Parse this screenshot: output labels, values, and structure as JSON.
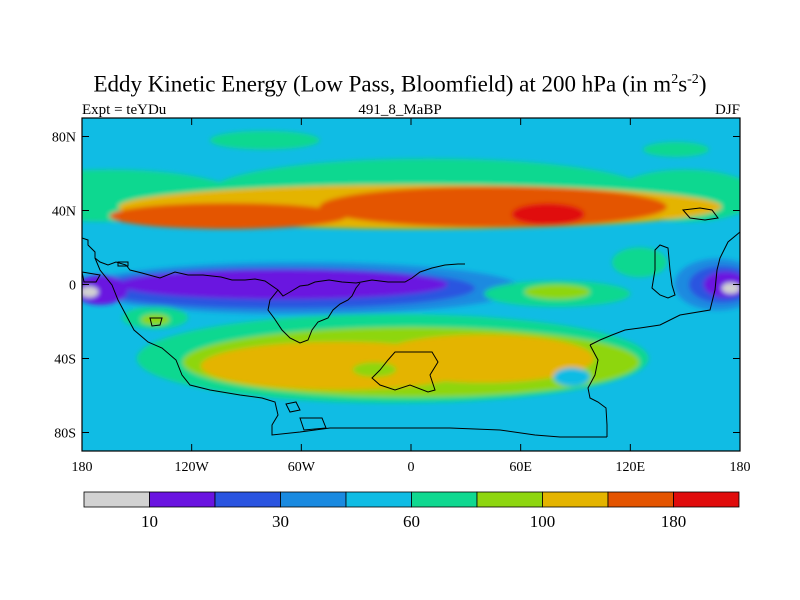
{
  "title": {
    "main": "Eddy Kinetic Energy (Low Pass, Bloomfield) at 200 hPa (in m",
    "sup1": "2",
    "mid": "s",
    "sup2": "-2",
    "end": ")"
  },
  "subtitle": {
    "left": "Expt = teYDu",
    "center": "491_8_MaBP",
    "right": "DJF"
  },
  "axes": {
    "y_ticks": [
      "80N",
      "40N",
      "0",
      "40S",
      "80S"
    ],
    "y_values": [
      80,
      40,
      0,
      -40,
      -80
    ],
    "x_ticks": [
      "180",
      "120W",
      "60W",
      "0",
      "60E",
      "120E",
      "180"
    ],
    "x_values": [
      -180,
      -120,
      -60,
      0,
      60,
      120,
      180
    ]
  },
  "colorbar": {
    "colors": [
      "#d2d2d2",
      "#6a14e0",
      "#2a54e0",
      "#1a8ae0",
      "#10bce4",
      "#10d890",
      "#8ed610",
      "#e4b400",
      "#e45400",
      "#e00c0c"
    ],
    "labels": [
      "10",
      "30",
      "60",
      "100",
      "180"
    ],
    "label_after_bin": [
      1,
      3,
      5,
      7,
      9
    ]
  },
  "legend_note": "shaded contours of eddy kinetic energy",
  "field": {
    "background": "#10bce4",
    "regions": [
      {
        "name": "band-n-green",
        "color": "#10d890",
        "lon": -165,
        "lat": 48,
        "rx": 70,
        "ry": 14
      },
      {
        "name": "band-n-green-2",
        "color": "#10d890",
        "lon": 10,
        "lat": 50,
        "rx": 120,
        "ry": 18
      },
      {
        "name": "band-n-green-3",
        "color": "#10d890",
        "lon": 150,
        "lat": 48,
        "rx": 40,
        "ry": 14
      },
      {
        "name": "band-n-yellow",
        "color": "#e4b400",
        "lon": 5,
        "lat": 42,
        "rx": 165,
        "ry": 12
      },
      {
        "name": "band-n-orange-w",
        "color": "#e45400",
        "lon": -100,
        "lat": 37,
        "rx": 65,
        "ry": 7
      },
      {
        "name": "band-n-orange-e",
        "color": "#e45400",
        "lon": 45,
        "lat": 42,
        "rx": 95,
        "ry": 11
      },
      {
        "name": "band-n-red",
        "color": "#e00c0c",
        "lon": 75,
        "lat": 38,
        "rx": 20,
        "ry": 6
      },
      {
        "name": "arctic-green",
        "color": "#10d890",
        "lon": -80,
        "lat": 78,
        "rx": 30,
        "ry": 5
      },
      {
        "name": "arctic-green-2",
        "color": "#10d890",
        "lon": 145,
        "lat": 73,
        "rx": 18,
        "ry": 4
      },
      {
        "name": "eq-blue",
        "color": "#1a8ae0",
        "lon": -60,
        "lat": -2,
        "rx": 120,
        "ry": 14
      },
      {
        "name": "eq-dblue",
        "color": "#2a54e0",
        "lon": -70,
        "lat": -2,
        "rx": 105,
        "ry": 11
      },
      {
        "name": "eq-purple",
        "color": "#6a14e0",
        "lon": -70,
        "lat": 0,
        "rx": 90,
        "ry": 8
      },
      {
        "name": "eq-blue-e",
        "color": "#1a8ae0",
        "lon": 168,
        "lat": 0,
        "rx": 24,
        "ry": 14
      },
      {
        "name": "eq-dblue-e",
        "color": "#2a54e0",
        "lon": 170,
        "lat": 0,
        "rx": 18,
        "ry": 10
      },
      {
        "name": "eq-purple-e",
        "color": "#6a14e0",
        "lon": 172,
        "lat": 0,
        "rx": 12,
        "ry": 7
      },
      {
        "name": "eq-grey-e",
        "color": "#d2d2d2",
        "lon": 175,
        "lat": -2,
        "rx": 5,
        "ry": 3
      },
      {
        "name": "eq-purple-w",
        "color": "#6a14e0",
        "lon": -170,
        "lat": -3,
        "rx": 15,
        "ry": 8
      },
      {
        "name": "eq-grey-w",
        "color": "#d2d2d2",
        "lon": -176,
        "lat": -4,
        "rx": 5,
        "ry": 3
      },
      {
        "name": "eq-green-pac",
        "color": "#10d890",
        "lon": 80,
        "lat": -5,
        "rx": 40,
        "ry": 7
      },
      {
        "name": "eq-lime-pac",
        "color": "#8ed610",
        "lon": 80,
        "lat": -4,
        "rx": 18,
        "ry": 4
      },
      {
        "name": "band-s-green",
        "color": "#10d890",
        "lon": -10,
        "lat": -40,
        "rx": 140,
        "ry": 24
      },
      {
        "name": "band-s-lime",
        "color": "#8ed610",
        "lon": 0,
        "lat": -42,
        "rx": 125,
        "ry": 19
      },
      {
        "name": "band-s-yellow-w",
        "color": "#e4b400",
        "lon": -40,
        "lat": -44,
        "rx": 75,
        "ry": 13
      },
      {
        "name": "band-s-yellow-e",
        "color": "#e4b400",
        "lon": 40,
        "lat": -40,
        "rx": 60,
        "ry": 13
      },
      {
        "name": "band-s-lime-in",
        "color": "#8ed610",
        "lon": -20,
        "lat": -46,
        "rx": 12,
        "ry": 4
      },
      {
        "name": "band-s-blue-hole",
        "color": "#10bce4",
        "lon": 88,
        "lat": -50,
        "rx": 10,
        "ry": 5
      },
      {
        "name": "pac-n-green",
        "color": "#10d890",
        "lon": 125,
        "lat": 12,
        "rx": 15,
        "ry": 8
      },
      {
        "name": "pac-s-green",
        "color": "#10d890",
        "lon": -140,
        "lat": -18,
        "rx": 18,
        "ry": 6
      },
      {
        "name": "pac-s-lime",
        "color": "#8ed610",
        "lon": -140,
        "lat": -19,
        "rx": 8,
        "ry": 3
      }
    ]
  }
}
